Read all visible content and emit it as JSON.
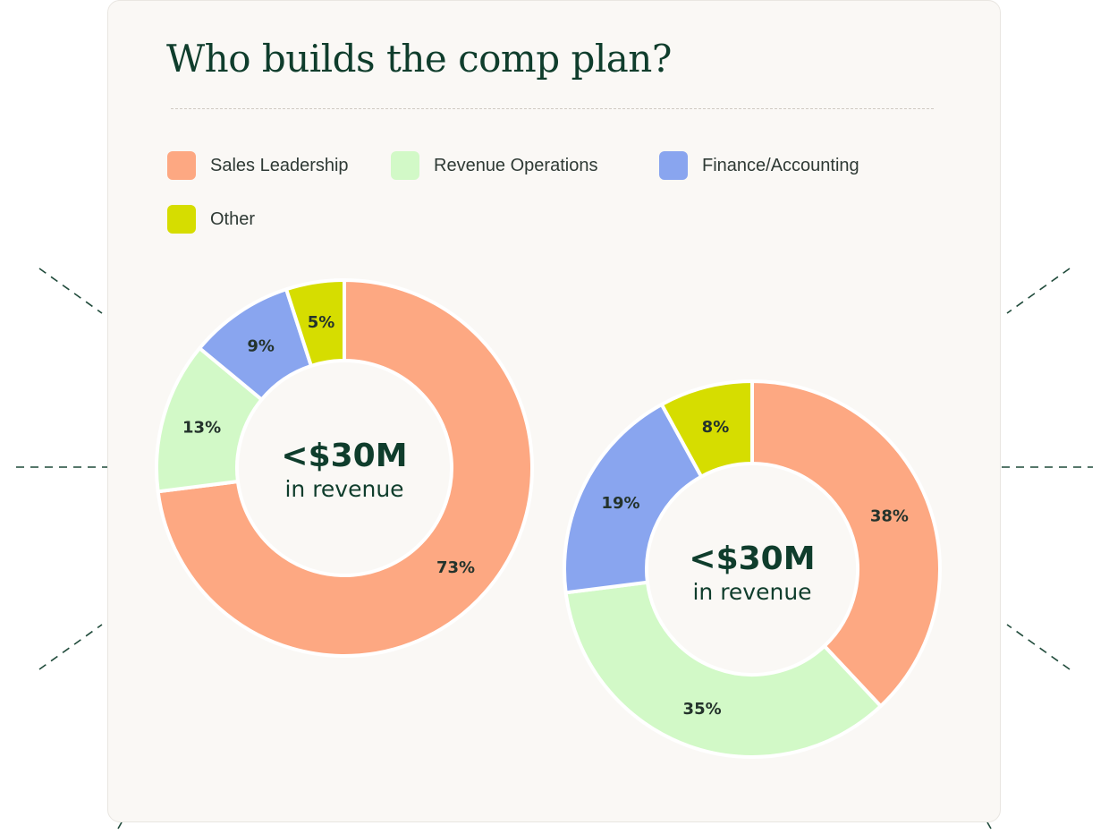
{
  "title": "Who builds the comp plan?",
  "colors": {
    "sales_leadership": "#fda882",
    "revenue_operations": "#d2f9c7",
    "finance_accounting": "#89a5ef",
    "other": "#d6dd00",
    "title": "#0f3d2c",
    "card_background": "#faf8f5"
  },
  "legend": [
    {
      "label": "Sales Leadership",
      "color": "#fda882"
    },
    {
      "label": "Revenue Operations",
      "color": "#d2f9c7"
    },
    {
      "label": "Finance/Accounting",
      "color": "#89a5ef"
    },
    {
      "label": "Other",
      "color": "#d6dd00"
    }
  ],
  "chart_data": [
    {
      "type": "pie",
      "style": "donut",
      "center_label": "<$30M",
      "center_sublabel": "in revenue",
      "slices": [
        {
          "name": "Sales Leadership",
          "value": 73,
          "label": "73%",
          "color": "#fda882"
        },
        {
          "name": "Revenue Operations",
          "value": 13,
          "label": "13%",
          "color": "#d2f9c7"
        },
        {
          "name": "Finance/Accounting",
          "value": 9,
          "label": "9%",
          "color": "#89a5ef"
        },
        {
          "name": "Other",
          "value": 5,
          "label": "5%",
          "color": "#d6dd00"
        }
      ]
    },
    {
      "type": "pie",
      "style": "donut",
      "center_label": "<$30M",
      "center_sublabel": "in revenue",
      "slices": [
        {
          "name": "Sales Leadership",
          "value": 38,
          "label": "38%",
          "color": "#fda882"
        },
        {
          "name": "Revenue Operations",
          "value": 35,
          "label": "35%",
          "color": "#d2f9c7"
        },
        {
          "name": "Finance/Accounting",
          "value": 19,
          "label": "19%",
          "color": "#89a5ef"
        },
        {
          "name": "Other",
          "value": 8,
          "label": "8%",
          "color": "#d6dd00"
        }
      ]
    }
  ]
}
